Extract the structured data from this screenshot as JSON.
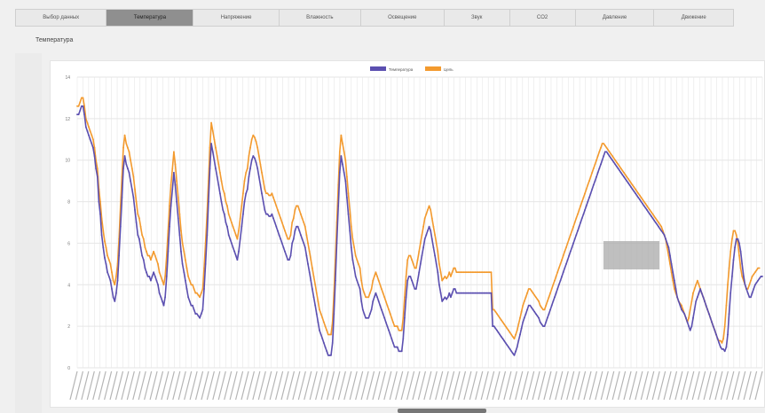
{
  "tabs": [
    {
      "label": "Выбор данных",
      "active": false
    },
    {
      "label": "Температура",
      "active": true
    },
    {
      "label": "Напряжение",
      "active": false
    },
    {
      "label": "Влажность",
      "active": false
    },
    {
      "label": "Освещение",
      "active": false
    },
    {
      "label": "Звук",
      "active": false
    },
    {
      "label": "CO2",
      "active": false
    },
    {
      "label": "Давление",
      "active": false
    },
    {
      "label": "Движение",
      "active": false
    }
  ],
  "page": {
    "title": "Температура"
  },
  "colors": {
    "series1": "#5b4fb0",
    "series2": "#f39a2e",
    "grid": "#e6e6e6"
  },
  "chart_data": {
    "type": "line",
    "title": "",
    "xlabel": "",
    "ylabel": "",
    "ylim": [
      0,
      14
    ],
    "yticks": [
      0,
      2,
      4,
      6,
      8,
      10,
      12,
      14
    ],
    "grid": true,
    "legend": "top-center",
    "series": [
      {
        "name": "Температура",
        "color": "#5b4fb0",
        "values": [
          12.2,
          12.2,
          12.4,
          12.6,
          12.6,
          12.2,
          11.6,
          11.4,
          11.2,
          11,
          10.8,
          10.6,
          10.2,
          9.6,
          9.2,
          8,
          7.4,
          6.4,
          5.8,
          5.3,
          5,
          4.6,
          4.4,
          4.2,
          3.8,
          3.4,
          3.2,
          3.6,
          4.2,
          5.4,
          6.8,
          8.2,
          9.6,
          10.2,
          9.8,
          9.6,
          9.4,
          9,
          8.6,
          8.2,
          7.6,
          7,
          6.4,
          6.2,
          5.8,
          5.4,
          5.2,
          4.8,
          4.6,
          4.4,
          4.4,
          4.2,
          4.4,
          4.6,
          4.4,
          4.2,
          4,
          3.6,
          3.4,
          3.2,
          3,
          3.4,
          4.4,
          5.6,
          6.8,
          7.8,
          8.6,
          9.4,
          8.8,
          8,
          7.2,
          6.4,
          5.6,
          5,
          4.6,
          4.2,
          3.8,
          3.4,
          3.2,
          3,
          3,
          2.8,
          2.6,
          2.6,
          2.5,
          2.4,
          2.6,
          2.8,
          3.8,
          5,
          6.4,
          8,
          9.6,
          10.8,
          10.4,
          10,
          9.6,
          9.2,
          8.8,
          8.4,
          8,
          7.6,
          7.4,
          7,
          6.8,
          6.4,
          6.2,
          6,
          5.8,
          5.6,
          5.4,
          5.2,
          5.6,
          6.2,
          6.8,
          7.4,
          8,
          8.4,
          8.6,
          9.2,
          9.6,
          10,
          10.2,
          10.1,
          9.9,
          9.6,
          9.2,
          8.8,
          8.4,
          8,
          7.6,
          7.4,
          7.4,
          7.3,
          7.3,
          7.4,
          7.2,
          7,
          6.8,
          6.6,
          6.4,
          6.2,
          6,
          5.8,
          5.6,
          5.4,
          5.2,
          5.2,
          5.4,
          6,
          6.2,
          6.6,
          6.8,
          6.8,
          6.6,
          6.4,
          6.2,
          6,
          5.8,
          5.4,
          5,
          4.6,
          4.2,
          3.8,
          3.4,
          3,
          2.6,
          2.2,
          1.8,
          1.6,
          1.4,
          1.2,
          1,
          0.8,
          0.6,
          0.6,
          0.6,
          1.2,
          2.6,
          4.2,
          6,
          7.8,
          9.4,
          10.2,
          9.8,
          9.4,
          9,
          8.2,
          7.4,
          6.6,
          5.8,
          5.2,
          4.8,
          4.4,
          4.2,
          4,
          3.8,
          3.2,
          2.8,
          2.6,
          2.4,
          2.4,
          2.4,
          2.6,
          2.8,
          3.2,
          3.4,
          3.6,
          3.4,
          3.2,
          3,
          2.8,
          2.6,
          2.4,
          2.2,
          2,
          1.8,
          1.6,
          1.4,
          1.2,
          1,
          1,
          1,
          0.8,
          0.8,
          0.8,
          1.4,
          2.4,
          3.4,
          4.2,
          4.4,
          4.4,
          4.2,
          4,
          3.8,
          3.8,
          4.2,
          4.6,
          5,
          5.4,
          5.8,
          6.2,
          6.4,
          6.6,
          6.8,
          6.6,
          6.2,
          5.8,
          5.4,
          5,
          4.6,
          4,
          3.6,
          3.2,
          3.3,
          3.4,
          3.3,
          3.4,
          3.6,
          3.4,
          3.6,
          3.8,
          3.8,
          3.6,
          3.6,
          3.6,
          3.6,
          3.6,
          3.6,
          3.6,
          3.6,
          3.6,
          3.6,
          3.6,
          3.6,
          3.6,
          3.6,
          3.6,
          3.6,
          3.6,
          3.6,
          3.6,
          3.6,
          3.6,
          3.6,
          3.6,
          3.6,
          3.6,
          2,
          2,
          1.9,
          1.8,
          1.7,
          1.6,
          1.5,
          1.4,
          1.3,
          1.2,
          1.1,
          1,
          0.9,
          0.8,
          0.7,
          0.6,
          0.8,
          1,
          1.3,
          1.6,
          1.9,
          2.2,
          2.4,
          2.6,
          2.8,
          3,
          3,
          2.9,
          2.8,
          2.7,
          2.6,
          2.5,
          2.4,
          2.2,
          2.1,
          2,
          2,
          2.2,
          2.4,
          2.6,
          2.8,
          3,
          3.2,
          3.4,
          3.6,
          3.8,
          4,
          4.2,
          4.4,
          4.6,
          4.8,
          5,
          5.2,
          5.4,
          5.6,
          5.8,
          6,
          6.2,
          6.4,
          6.6,
          6.8,
          7,
          7.2,
          7.4,
          7.6,
          7.8,
          8,
          8.2,
          8.4,
          8.6,
          8.8,
          9,
          9.2,
          9.4,
          9.6,
          9.8,
          10,
          10.2,
          10.4,
          10.4,
          10.3,
          10.2,
          10.1,
          10,
          9.9,
          9.8,
          9.7,
          9.6,
          9.5,
          9.4,
          9.3,
          9.2,
          9.1,
          9,
          8.9,
          8.8,
          8.7,
          8.6,
          8.5,
          8.4,
          8.3,
          8.2,
          8.1,
          8,
          7.9,
          7.8,
          7.7,
          7.6,
          7.5,
          7.4,
          7.3,
          7.2,
          7.1,
          7,
          6.9,
          6.8,
          6.7,
          6.6,
          6.5,
          6.4,
          6.2,
          6,
          5.8,
          5.4,
          5,
          4.6,
          4.2,
          3.8,
          3.4,
          3.2,
          3,
          2.8,
          2.7,
          2.6,
          2.4,
          2.2,
          2,
          1.8,
          2,
          2.4,
          2.8,
          3.2,
          3.4,
          3.6,
          3.8,
          3.6,
          3.4,
          3.2,
          3,
          2.8,
          2.6,
          2.4,
          2.2,
          2,
          1.8,
          1.6,
          1.4,
          1.2,
          1,
          0.9,
          0.9,
          0.8,
          1,
          1.6,
          2.6,
          3.6,
          4.4,
          5.2,
          5.8,
          6.2,
          6.2,
          6,
          5.6,
          5,
          4.4,
          4,
          3.8,
          3.6,
          3.4,
          3.4,
          3.6,
          3.8,
          4,
          4.1,
          4.2,
          4.3,
          4.4,
          4.4
        ]
      },
      {
        "name": "Цель",
        "color": "#f39a2e",
        "values": [
          12.6,
          12.6,
          12.8,
          13,
          13,
          12.6,
          12,
          11.8,
          11.6,
          11.4,
          11.2,
          11,
          10.6,
          10,
          9.6,
          8.6,
          8,
          7.2,
          6.6,
          6.1,
          5.8,
          5.4,
          5.2,
          5,
          4.6,
          4.2,
          4,
          4.4,
          5,
          6.2,
          7.8,
          9.2,
          10.6,
          11.2,
          10.8,
          10.6,
          10.4,
          10,
          9.6,
          9.2,
          8.6,
          8,
          7.4,
          7.2,
          6.8,
          6.4,
          6.2,
          5.8,
          5.6,
          5.4,
          5.4,
          5.2,
          5.4,
          5.6,
          5.4,
          5.2,
          5,
          4.6,
          4.4,
          4.2,
          4,
          4.4,
          5.4,
          6.6,
          7.8,
          8.8,
          9.6,
          10.4,
          9.8,
          9,
          8.2,
          7.4,
          6.6,
          6,
          5.6,
          5.2,
          4.8,
          4.4,
          4.2,
          4,
          4,
          3.8,
          3.6,
          3.6,
          3.5,
          3.4,
          3.6,
          3.8,
          4.8,
          6,
          7.4,
          9,
          10.6,
          11.8,
          11.4,
          11,
          10.6,
          10.2,
          9.8,
          9.4,
          9,
          8.6,
          8.4,
          8,
          7.8,
          7.4,
          7.2,
          7,
          6.8,
          6.6,
          6.4,
          6.2,
          6.6,
          7.2,
          7.8,
          8.4,
          9,
          9.4,
          9.6,
          10.2,
          10.6,
          11,
          11.2,
          11.1,
          10.9,
          10.6,
          10.2,
          9.8,
          9.4,
          9,
          8.6,
          8.4,
          8.4,
          8.3,
          8.3,
          8.4,
          8.2,
          8,
          7.8,
          7.6,
          7.4,
          7.2,
          7,
          6.8,
          6.6,
          6.4,
          6.2,
          6.2,
          6.4,
          7,
          7.2,
          7.6,
          7.8,
          7.8,
          7.6,
          7.4,
          7.2,
          7,
          6.8,
          6.4,
          6,
          5.6,
          5.2,
          4.8,
          4.4,
          4,
          3.6,
          3.2,
          2.8,
          2.6,
          2.4,
          2.2,
          2,
          1.8,
          1.6,
          1.6,
          1.6,
          2.2,
          3.6,
          5.2,
          7,
          8.8,
          10.4,
          11.2,
          10.8,
          10.4,
          10,
          9.2,
          8.4,
          7.6,
          6.8,
          6.2,
          5.8,
          5.4,
          5.2,
          5,
          4.8,
          4.2,
          3.8,
          3.6,
          3.4,
          3.4,
          3.4,
          3.6,
          3.8,
          4.2,
          4.4,
          4.6,
          4.4,
          4.2,
          4,
          3.8,
          3.6,
          3.4,
          3.2,
          3,
          2.8,
          2.6,
          2.4,
          2.2,
          2,
          2,
          2,
          1.8,
          1.8,
          1.8,
          2.4,
          3.4,
          4.4,
          5.2,
          5.4,
          5.4,
          5.2,
          5,
          4.8,
          4.8,
          5.2,
          5.6,
          6,
          6.4,
          6.8,
          7.2,
          7.4,
          7.6,
          7.8,
          7.6,
          7.2,
          6.8,
          6.4,
          6,
          5.6,
          5,
          4.6,
          4.2,
          4.3,
          4.4,
          4.3,
          4.4,
          4.6,
          4.4,
          4.6,
          4.8,
          4.8,
          4.6,
          4.6,
          4.6,
          4.6,
          4.6,
          4.6,
          4.6,
          4.6,
          4.6,
          4.6,
          4.6,
          4.6,
          4.6,
          4.6,
          4.6,
          4.6,
          4.6,
          4.6,
          4.6,
          4.6,
          4.6,
          4.6,
          4.6,
          4.6,
          4.6,
          2.8,
          2.8,
          2.7,
          2.6,
          2.5,
          2.4,
          2.3,
          2.2,
          2.1,
          2,
          1.9,
          1.8,
          1.7,
          1.6,
          1.5,
          1.4,
          1.6,
          1.8,
          2.1,
          2.4,
          2.7,
          3,
          3.2,
          3.4,
          3.6,
          3.8,
          3.8,
          3.7,
          3.6,
          3.5,
          3.4,
          3.3,
          3.2,
          3,
          2.9,
          2.8,
          2.8,
          3,
          3.2,
          3.4,
          3.6,
          3.8,
          4,
          4.2,
          4.4,
          4.6,
          4.8,
          5,
          5.2,
          5.4,
          5.6,
          5.8,
          6,
          6.2,
          6.4,
          6.6,
          6.8,
          7,
          7.2,
          7.4,
          7.6,
          7.8,
          8,
          8.2,
          8.4,
          8.6,
          8.8,
          9,
          9.2,
          9.4,
          9.6,
          9.8,
          10,
          10.2,
          10.4,
          10.6,
          10.8,
          10.8,
          10.7,
          10.6,
          10.5,
          10.4,
          10.3,
          10.2,
          10.1,
          10,
          9.9,
          9.8,
          9.7,
          9.6,
          9.5,
          9.4,
          9.3,
          9.2,
          9.1,
          9,
          8.9,
          8.8,
          8.7,
          8.6,
          8.5,
          8.4,
          8.3,
          8.2,
          8.1,
          8,
          7.9,
          7.8,
          7.7,
          7.6,
          7.5,
          7.4,
          7.3,
          7.2,
          7.1,
          7,
          6.9,
          6.8,
          6.6,
          6.4,
          6.2,
          5.8,
          5.4,
          5,
          4.6,
          4.2,
          3.8,
          3.6,
          3.4,
          3.2,
          3.1,
          3,
          2.8,
          2.6,
          2.4,
          2.2,
          2.4,
          2.8,
          3.2,
          3.6,
          3.8,
          4,
          4.2,
          4,
          3.8,
          3.6,
          3.4,
          3.2,
          3,
          2.8,
          2.6,
          2.4,
          2.2,
          2,
          1.8,
          1.6,
          1.4,
          1.3,
          1.3,
          1.2,
          1.4,
          2,
          3,
          4,
          4.8,
          5.6,
          6.2,
          6.6,
          6.6,
          6.4,
          6,
          5.4,
          4.8,
          4.4,
          4.2,
          4,
          3.8,
          3.8,
          4,
          4.2,
          4.4,
          4.5,
          4.6,
          4.7,
          4.8,
          4.8
        ]
      }
    ]
  }
}
